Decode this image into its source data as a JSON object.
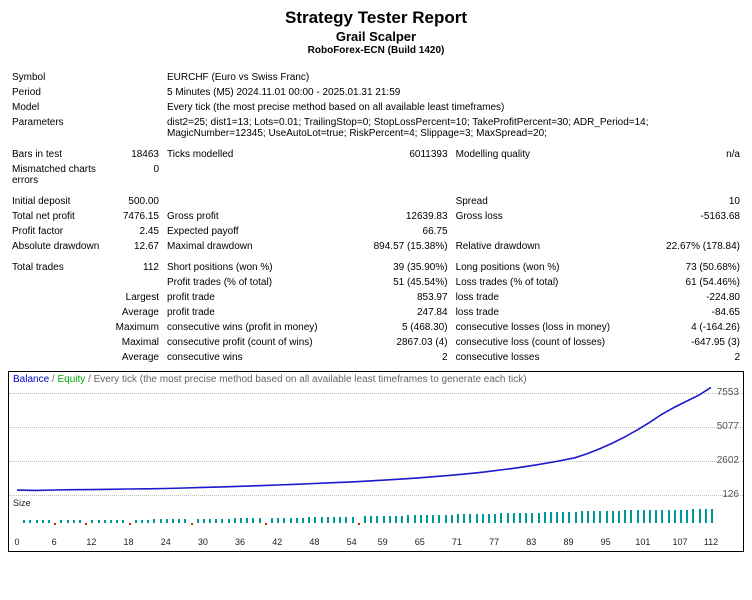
{
  "header": {
    "title": "Strategy Tester Report",
    "subtitle": "Grail Scalper",
    "build": "RoboForex-ECN (Build 1420)"
  },
  "info": {
    "symbol_lbl": "Symbol",
    "symbol_val": "EURCHF (Euro vs Swiss Franc)",
    "period_lbl": "Period",
    "period_val": "5 Minutes (M5) 2024.11.01 00:00 - 2025.01.31 21:59",
    "model_lbl": "Model",
    "model_val": "Every tick (the most precise method based on all available least timeframes)",
    "params_lbl": "Parameters",
    "params_val": "dist2=25; dist1=13; Lots=0.01; TrailingStop=0; StopLossPercent=10; TakeProfitPercent=30; ADR_Period=14; MagicNumber=12345; UseAutoLot=true; RiskPercent=4; Slippage=3; MaxSpread=20;",
    "bars_lbl": "Bars in test",
    "bars_val": "18463",
    "ticks_lbl": "Ticks modelled",
    "ticks_val": "6011393",
    "quality_lbl": "Modelling quality",
    "quality_val": "n/a",
    "mismatch_lbl": "Mismatched charts errors",
    "mismatch_val": "0",
    "deposit_lbl": "Initial deposit",
    "deposit_val": "500.00",
    "spread_lbl": "Spread",
    "spread_val": "10",
    "netprofit_lbl": "Total net profit",
    "netprofit_val": "7476.15",
    "grossprofit_lbl": "Gross profit",
    "grossprofit_val": "12639.83",
    "grossloss_lbl": "Gross loss",
    "grossloss_val": "-5163.68",
    "pf_lbl": "Profit factor",
    "pf_val": "2.45",
    "ep_lbl": "Expected payoff",
    "ep_val": "66.75",
    "absdd_lbl": "Absolute drawdown",
    "absdd_val": "12.67",
    "maxdd_lbl": "Maximal drawdown",
    "maxdd_val": "894.57 (15.38%)",
    "reldd_lbl": "Relative drawdown",
    "reldd_val": "22.67% (178.84)",
    "trades_lbl": "Total trades",
    "trades_val": "112",
    "short_lbl": "Short positions (won %)",
    "short_val": "39 (35.90%)",
    "long_lbl": "Long positions (won %)",
    "long_val": "73 (50.68%)",
    "pt_lbl": "Profit trades (% of total)",
    "pt_val": "51 (45.54%)",
    "lt_lbl": "Loss trades (% of total)",
    "lt_val": "61 (54.46%)",
    "largest_lbl": "Largest",
    "lpt_lbl": "profit trade",
    "lpt_val": "853.97",
    "llt_lbl": "loss trade",
    "llt_val": "-224.80",
    "avg_lbl": "Average",
    "apt_lbl": "profit trade",
    "apt_val": "247.84",
    "alt_lbl": "loss trade",
    "alt_val": "-84.65",
    "max_lbl": "Maximum",
    "mcw_lbl": "consecutive wins (profit in money)",
    "mcw_val": "5 (468.30)",
    "mcl_lbl": "consecutive losses (loss in money)",
    "mcl_val": "4 (-164.26)",
    "maxl_lbl": "Maximal",
    "mcp_lbl": "consecutive profit (count of wins)",
    "mcp_val": "2867.03 (4)",
    "mcls_lbl": "consecutive loss (count of losses)",
    "mcls_val": "-647.95 (3)",
    "avg2_lbl": "Average",
    "acw_lbl": "consecutive wins",
    "acw_val": "2",
    "acl_lbl": "consecutive losses",
    "acl_val": "2"
  },
  "chart": {
    "legend_balance": "Balance",
    "legend_equity": "Equity",
    "legend_rest": "/ Every tick (the most precise method based on all available least timeframes to generate each tick)",
    "size_lbl": "Size",
    "yticks": [
      126,
      2602,
      5077,
      7553
    ],
    "ylim": [
      0,
      8000
    ],
    "curve_color": "#1a1acc",
    "equity_color": "#00aa00",
    "bar_color": "#009999",
    "curve_points": [
      [
        0,
        500
      ],
      [
        3,
        480
      ],
      [
        6,
        510
      ],
      [
        9,
        530
      ],
      [
        12,
        540
      ],
      [
        15,
        560
      ],
      [
        18,
        580
      ],
      [
        21,
        600
      ],
      [
        24,
        620
      ],
      [
        27,
        655
      ],
      [
        30,
        700
      ],
      [
        33,
        735
      ],
      [
        36,
        780
      ],
      [
        39,
        820
      ],
      [
        42,
        870
      ],
      [
        45,
        920
      ],
      [
        48,
        980
      ],
      [
        51,
        1040
      ],
      [
        54,
        1100
      ],
      [
        57,
        1170
      ],
      [
        60,
        1250
      ],
      [
        63,
        1330
      ],
      [
        66,
        1430
      ],
      [
        69,
        1540
      ],
      [
        72,
        1660
      ],
      [
        75,
        1800
      ],
      [
        78,
        1960
      ],
      [
        81,
        2140
      ],
      [
        84,
        2350
      ],
      [
        87,
        2580
      ],
      [
        90,
        2850
      ],
      [
        92,
        3150
      ],
      [
        94,
        3500
      ],
      [
        96,
        3900
      ],
      [
        98,
        4350
      ],
      [
        100,
        4850
      ],
      [
        102,
        5400
      ],
      [
        104,
        6000
      ],
      [
        106,
        6500
      ],
      [
        108,
        6950
      ],
      [
        110,
        7400
      ],
      [
        112,
        7970
      ]
    ],
    "xticks": [
      0,
      6,
      12,
      18,
      24,
      30,
      36,
      42,
      48,
      54,
      59,
      65,
      71,
      77,
      83,
      89,
      95,
      101,
      107,
      112
    ],
    "xlim": [
      0,
      112
    ],
    "bars": [
      [
        1,
        3
      ],
      [
        2,
        3
      ],
      [
        3,
        3
      ],
      [
        4,
        3
      ],
      [
        5,
        3
      ],
      [
        6,
        -2
      ],
      [
        7,
        3
      ],
      [
        8,
        3
      ],
      [
        9,
        3
      ],
      [
        10,
        3
      ],
      [
        11,
        -2
      ],
      [
        12,
        3
      ],
      [
        13,
        3
      ],
      [
        14,
        3
      ],
      [
        15,
        3
      ],
      [
        16,
        3
      ],
      [
        17,
        3
      ],
      [
        18,
        -2
      ],
      [
        19,
        3
      ],
      [
        20,
        3
      ],
      [
        21,
        3
      ],
      [
        22,
        4
      ],
      [
        23,
        4
      ],
      [
        24,
        4
      ],
      [
        25,
        4
      ],
      [
        26,
        4
      ],
      [
        27,
        4
      ],
      [
        28,
        -2
      ],
      [
        29,
        4
      ],
      [
        30,
        4
      ],
      [
        31,
        4
      ],
      [
        32,
        4
      ],
      [
        33,
        4
      ],
      [
        34,
        4
      ],
      [
        35,
        5
      ],
      [
        36,
        5
      ],
      [
        37,
        5
      ],
      [
        38,
        5
      ],
      [
        39,
        5
      ],
      [
        40,
        -2
      ],
      [
        41,
        5
      ],
      [
        42,
        5
      ],
      [
        43,
        5
      ],
      [
        44,
        5
      ],
      [
        45,
        5
      ],
      [
        46,
        5
      ],
      [
        47,
        6
      ],
      [
        48,
        6
      ],
      [
        49,
        6
      ],
      [
        50,
        6
      ],
      [
        51,
        6
      ],
      [
        52,
        6
      ],
      [
        53,
        6
      ],
      [
        54,
        6
      ],
      [
        55,
        -2
      ],
      [
        56,
        7
      ],
      [
        57,
        7
      ],
      [
        58,
        7
      ],
      [
        59,
        7
      ],
      [
        60,
        7
      ],
      [
        61,
        7
      ],
      [
        62,
        7
      ],
      [
        63,
        8
      ],
      [
        64,
        8
      ],
      [
        65,
        8
      ],
      [
        66,
        8
      ],
      [
        67,
        8
      ],
      [
        68,
        8
      ],
      [
        69,
        8
      ],
      [
        70,
        8
      ],
      [
        71,
        9
      ],
      [
        72,
        9
      ],
      [
        73,
        9
      ],
      [
        74,
        9
      ],
      [
        75,
        9
      ],
      [
        76,
        9
      ],
      [
        77,
        9
      ],
      [
        78,
        10
      ],
      [
        79,
        10
      ],
      [
        80,
        10
      ],
      [
        81,
        10
      ],
      [
        82,
        10
      ],
      [
        83,
        10
      ],
      [
        84,
        10
      ],
      [
        85,
        11
      ],
      [
        86,
        11
      ],
      [
        87,
        11
      ],
      [
        88,
        11
      ],
      [
        89,
        11
      ],
      [
        90,
        11
      ],
      [
        91,
        12
      ],
      [
        92,
        12
      ],
      [
        93,
        12
      ],
      [
        94,
        12
      ],
      [
        95,
        12
      ],
      [
        96,
        12
      ],
      [
        97,
        12
      ],
      [
        98,
        13
      ],
      [
        99,
        13
      ],
      [
        100,
        13
      ],
      [
        101,
        13
      ],
      [
        102,
        13
      ],
      [
        103,
        13
      ],
      [
        104,
        13
      ],
      [
        105,
        13
      ],
      [
        106,
        13
      ],
      [
        107,
        13
      ],
      [
        108,
        13
      ],
      [
        109,
        14
      ],
      [
        110,
        14
      ],
      [
        111,
        14
      ],
      [
        112,
        14
      ]
    ]
  }
}
